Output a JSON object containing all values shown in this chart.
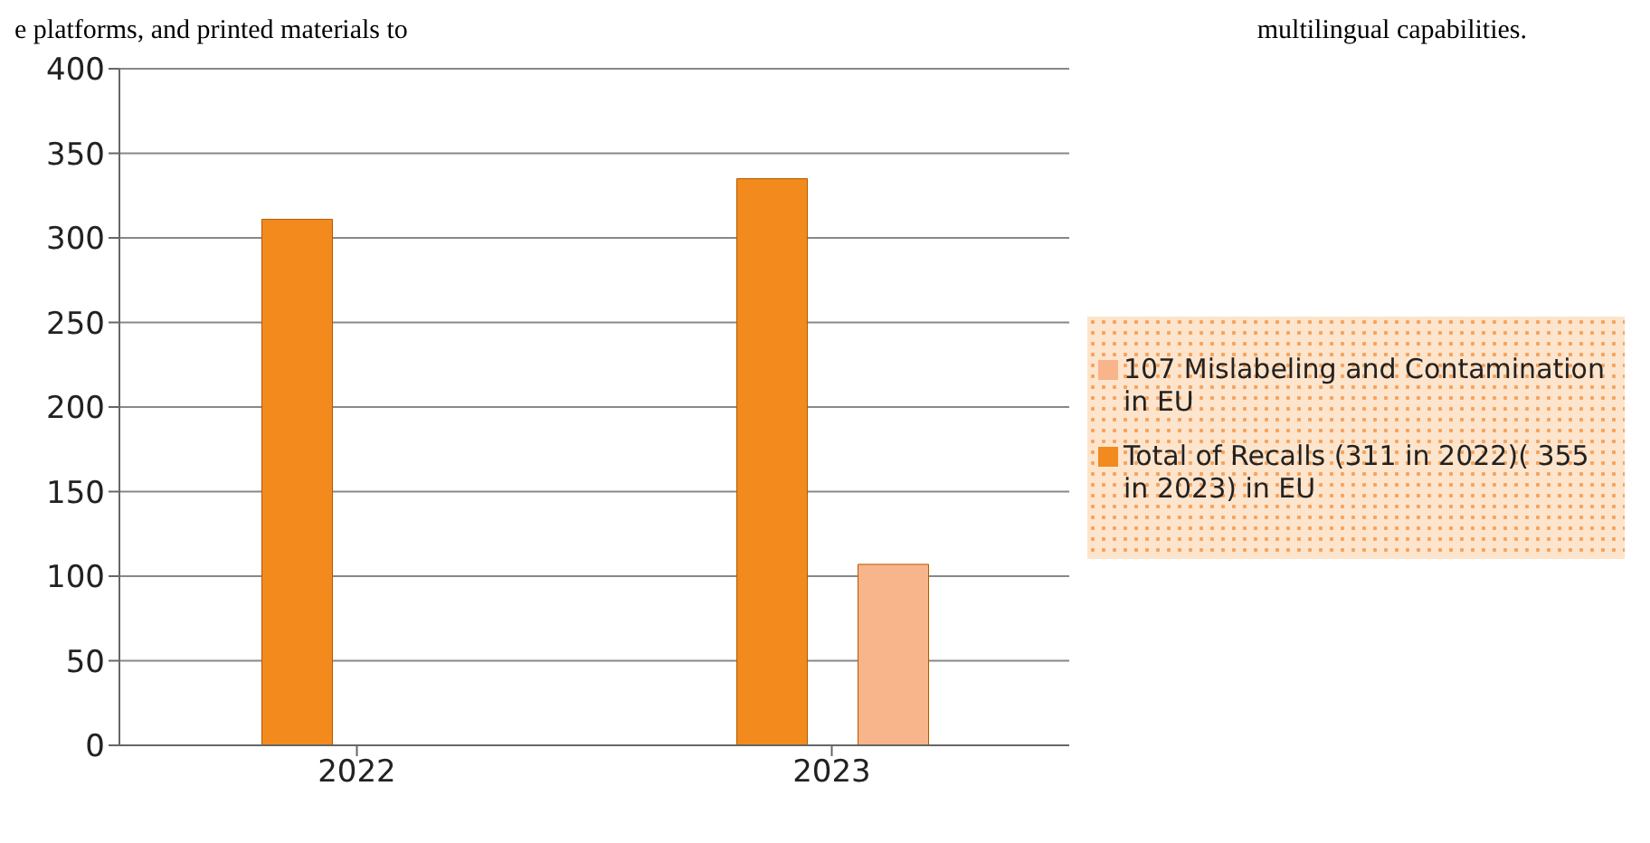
{
  "chart_data": {
    "type": "bar",
    "categories": [
      "2022",
      "2023"
    ],
    "series": [
      {
        "name": "Total of Recalls (311 in 2022)( 355 in 2023) in EU",
        "color": "#f28a1e",
        "values": [
          311,
          335
        ]
      },
      {
        "name": "107 Mislabeling and Contamination in EU",
        "color": "#f8b48a",
        "values": [
          null,
          107
        ]
      }
    ],
    "ylim": [
      0,
      400
    ],
    "yticks": [
      0,
      50,
      100,
      150,
      200,
      250,
      300,
      350,
      400
    ],
    "grid": "y",
    "legend": "right",
    "annotations": [
      "e platforms, and printed materials to",
      "multilingual capabilities."
    ]
  }
}
